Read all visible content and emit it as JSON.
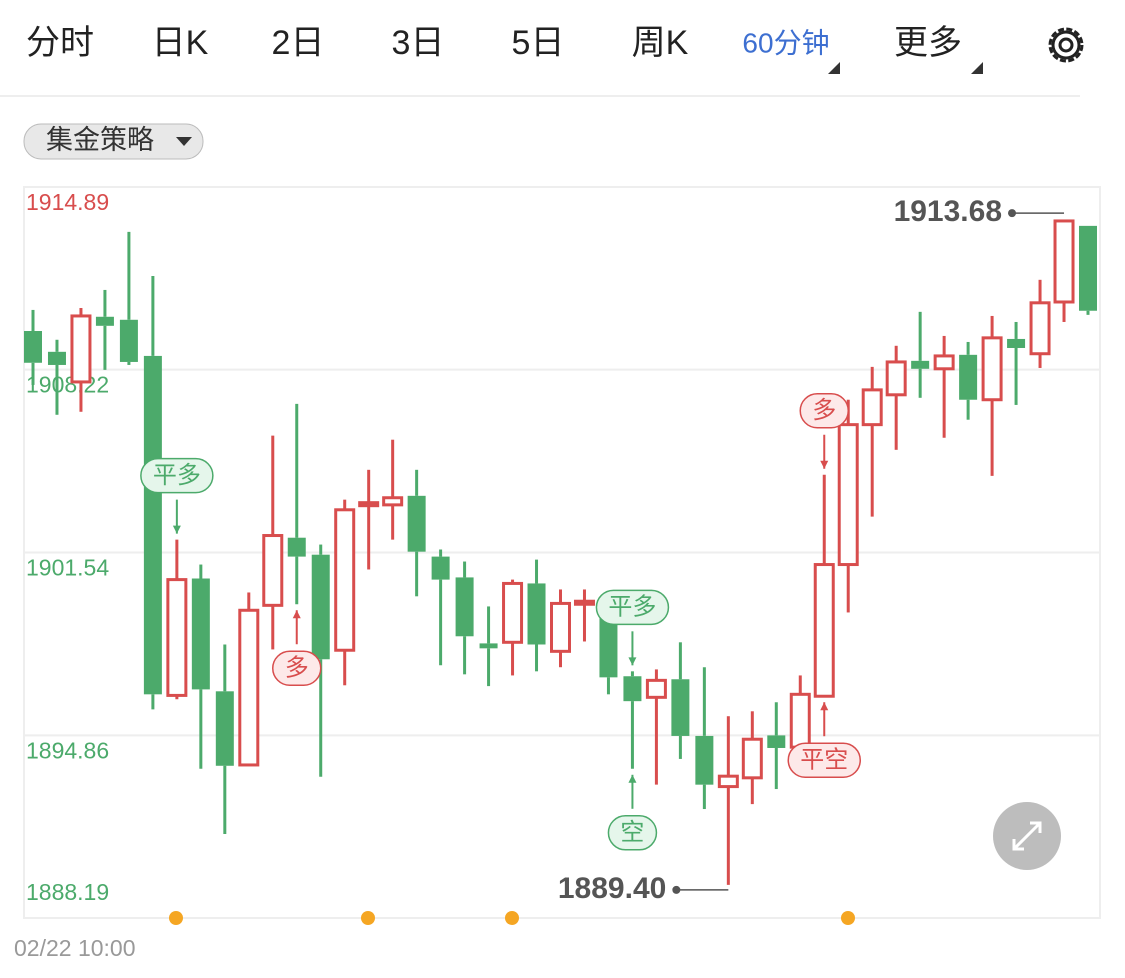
{
  "tabs": [
    "分时",
    "日K",
    "2日",
    "3日",
    "5日",
    "周K",
    "60分钟",
    "更多"
  ],
  "active_tab": 6,
  "strategy_button": "集金策略",
  "chart_data": {
    "type": "candlestick",
    "ylim": [
      1888.19,
      1914.89
    ],
    "yticks": [
      1914.89,
      1908.22,
      1901.54,
      1894.86,
      1888.19
    ],
    "ytick_colors": [
      "#d84d4d",
      "#4caa6b",
      "#4caa6b",
      "#4caa6b",
      "#4caa6b"
    ],
    "grid": true,
    "up_color": "#d84d4d",
    "down_color": "#4caa6b",
    "categories": [
      "02/22 10:00",
      null,
      null,
      null,
      null,
      null,
      null,
      null,
      null,
      null,
      null,
      null,
      null,
      null,
      null,
      null,
      null,
      null,
      null,
      null,
      null,
      null,
      null,
      null,
      null,
      null,
      null,
      null,
      null,
      null,
      null,
      null,
      null,
      null,
      null,
      null,
      null,
      null,
      null,
      null,
      null,
      null,
      null,
      null,
      null
    ],
    "open": [
      1909.63,
      1908.87,
      1907.77,
      1910.15,
      1910.04,
      1908.72,
      1896.32,
      1900.59,
      1896.47,
      1893.78,
      1899.61,
      1902.08,
      1901.46,
      1897.97,
      1903.25,
      1903.28,
      1903.61,
      1901.39,
      1900.63,
      1898.22,
      1898.26,
      1900.41,
      1897.93,
      1899.65,
      1899.76,
      1897.02,
      1896.25,
      1896.91,
      1894.84,
      1892.99,
      1893.31,
      1894.86,
      1894.43,
      1896.29,
      1901.1,
      1906.21,
      1907.3,
      1908.54,
      1908.25,
      1908.76,
      1907.12,
      1909.34,
      1908.8,
      1910.69,
      1913.47
    ],
    "high": [
      1910.4,
      1909.31,
      1910.47,
      1911.13,
      1913.25,
      1911.64,
      1902.01,
      1901.1,
      1898.18,
      1900.08,
      1905.81,
      1906.97,
      1901.83,
      1903.47,
      1904.56,
      1905.66,
      1904.56,
      1901.65,
      1901.21,
      1899.57,
      1900.55,
      1901.28,
      1900.19,
      1900.19,
      1900.01,
      1897.2,
      1897.27,
      1898.26,
      1897.35,
      1895.56,
      1895.74,
      1896.07,
      1897.05,
      1904.38,
      1907.12,
      1908.32,
      1909.09,
      1910.33,
      1909.45,
      1909.23,
      1910.18,
      1909.96,
      1911.5,
      1913.68,
      1913.47
    ],
    "low": [
      1907.66,
      1906.57,
      1906.68,
      1908.21,
      1908.39,
      1895.81,
      1896.18,
      1893.64,
      1891.26,
      1893.78,
      1898.0,
      1899.65,
      1893.35,
      1896.69,
      1900.92,
      1902.01,
      1899.94,
      1897.42,
      1897.09,
      1896.66,
      1897.05,
      1897.2,
      1897.35,
      1898.29,
      1896.36,
      1893.64,
      1893.06,
      1894.0,
      1892.17,
      1889.4,
      1892.35,
      1892.9,
      1893.82,
      1896.29,
      1899.35,
      1902.85,
      1905.29,
      1907.19,
      1905.73,
      1906.39,
      1904.34,
      1906.93,
      1908.28,
      1909.96,
      1910.22
    ],
    "close": [
      1908.47,
      1908.39,
      1910.18,
      1909.82,
      1908.5,
      1896.36,
      1900.55,
      1896.54,
      1893.75,
      1899.43,
      1902.16,
      1901.39,
      1897.64,
      1903.1,
      1903.36,
      1903.54,
      1901.57,
      1900.55,
      1898.48,
      1898.04,
      1900.41,
      1898.18,
      1899.68,
      1899.76,
      1896.98,
      1896.11,
      1896.87,
      1894.84,
      1893.06,
      1893.37,
      1894.72,
      1894.4,
      1896.36,
      1901.1,
      1906.21,
      1907.48,
      1908.5,
      1908.25,
      1908.72,
      1907.12,
      1909.38,
      1909.01,
      1910.66,
      1913.65,
      1910.37
    ],
    "extremes": [
      {
        "index": 43,
        "field": "high",
        "label": "1913.68"
      },
      {
        "index": 29,
        "field": "low",
        "label": "1889.40"
      }
    ],
    "markers": [
      {
        "index": 6,
        "label": "平多",
        "side": "above",
        "color": "#4caa6b"
      },
      {
        "index": 11,
        "label": "多",
        "side": "below",
        "color": "#d84d4d"
      },
      {
        "index": 25,
        "label": "平多",
        "side": "above",
        "color": "#4caa6b"
      },
      {
        "index": 25,
        "label": "空",
        "side": "below",
        "color": "#4caa6b"
      },
      {
        "index": 33,
        "label": "多",
        "side": "above",
        "color": "#d84d4d"
      },
      {
        "index": 33,
        "label": "平空",
        "side": "below",
        "color": "#d84d4d"
      }
    ]
  }
}
